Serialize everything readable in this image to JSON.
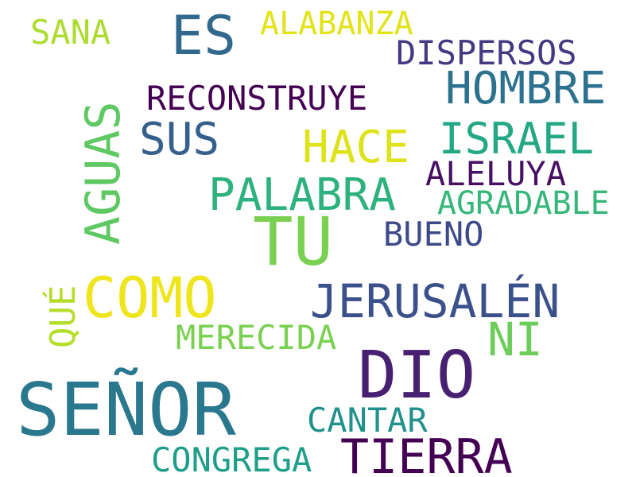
{
  "words": [
    {
      "id": "senor",
      "text": "SEÑOR",
      "color": "#2a788e"
    },
    {
      "id": "dio",
      "text": "DIO",
      "color": "#482071"
    },
    {
      "id": "tu",
      "text": "TU",
      "color": "#7ad151"
    },
    {
      "id": "tierra",
      "text": "TIERRA",
      "color": "#440154"
    },
    {
      "id": "jerusalen",
      "text": "JERUSALÉN",
      "color": "#3b518b"
    },
    {
      "id": "como",
      "text": "COMO",
      "color": "#efe51c"
    },
    {
      "id": "aguas",
      "text": "AGUAS",
      "color": "#5ec962"
    },
    {
      "id": "hombre",
      "text": "HOMBRE",
      "color": "#2c728e"
    },
    {
      "id": "israel",
      "text": "ISRAEL",
      "color": "#22a884"
    },
    {
      "id": "palabra",
      "text": "PALABRA",
      "color": "#2db27d"
    },
    {
      "id": "es",
      "text": "ES",
      "color": "#31688e"
    },
    {
      "id": "sus",
      "text": "SUS",
      "color": "#355f8d"
    },
    {
      "id": "hace",
      "text": "HACE",
      "color": "#dde318"
    },
    {
      "id": "ni",
      "text": "NI",
      "color": "#6ccd5a"
    },
    {
      "id": "alabanza",
      "text": "ALABANZA",
      "color": "#e2e418"
    },
    {
      "id": "reconstruye",
      "text": "RECONSTRUYE",
      "color": "#440154"
    },
    {
      "id": "dispersos",
      "text": "DISPERSOS",
      "color": "#443983"
    },
    {
      "id": "aleluya",
      "text": "ALELUYA",
      "color": "#471063"
    },
    {
      "id": "agradable",
      "text": "AGRADABLE",
      "color": "#35b779"
    },
    {
      "id": "bueno",
      "text": "BUENO",
      "color": "#3e4989"
    },
    {
      "id": "merecida",
      "text": "MERECIDA",
      "color": "#7ad151"
    },
    {
      "id": "cantar",
      "text": "CANTAR",
      "color": "#21918c"
    },
    {
      "id": "congrega",
      "text": "CONGREGA",
      "color": "#1f9e89"
    },
    {
      "id": "sana",
      "text": "SANA",
      "color": "#addc30"
    },
    {
      "id": "que",
      "text": "QUÉ",
      "color": "#b5de2b"
    }
  ]
}
